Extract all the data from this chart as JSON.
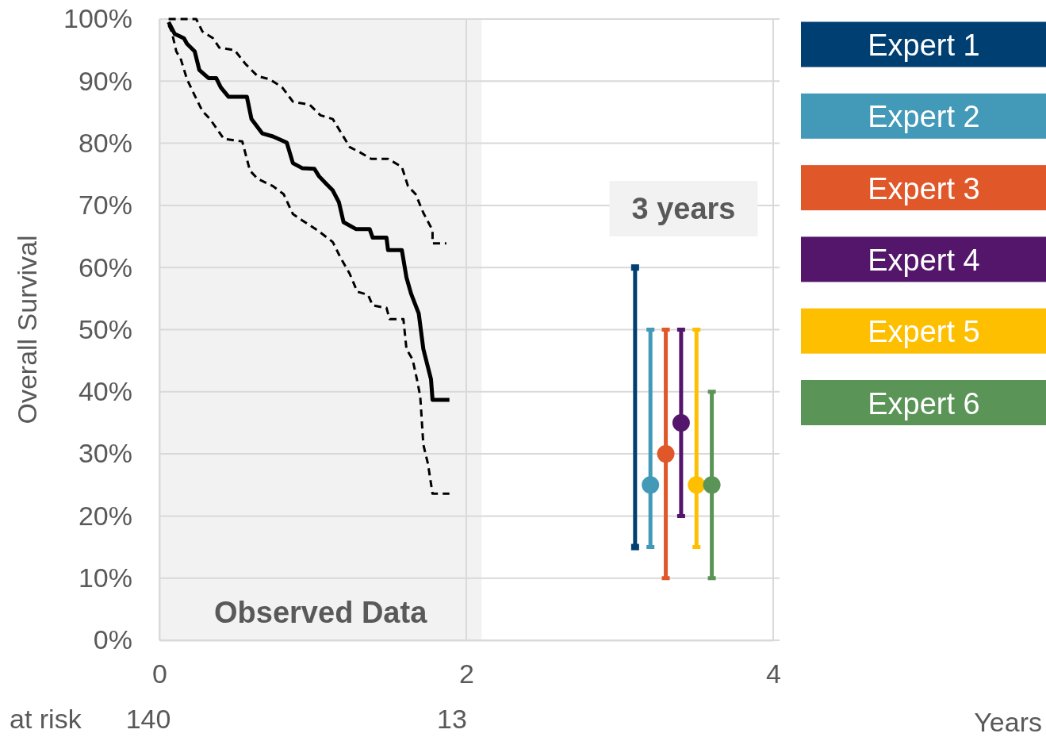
{
  "chart_data": {
    "type": "line",
    "ylabel": "Overall Survival",
    "xlim": [
      0,
      4
    ],
    "xticks": [
      0,
      2,
      4
    ],
    "ylim": [
      0,
      100
    ],
    "yticks": [
      {
        "value": 0,
        "label": "0%"
      },
      {
        "value": 10,
        "label": "10%"
      },
      {
        "value": 20,
        "label": "20%"
      },
      {
        "value": 30,
        "label": "30%"
      },
      {
        "value": 40,
        "label": "40%"
      },
      {
        "value": 50,
        "label": "50%"
      },
      {
        "value": 60,
        "label": "60%"
      },
      {
        "value": 70,
        "label": "70%"
      },
      {
        "value": 80,
        "label": "80%"
      },
      {
        "value": 90,
        "label": "90%"
      },
      {
        "value": 100,
        "label": "100%"
      }
    ],
    "grid": true,
    "legend": "right",
    "bands": [
      {
        "axis": "x",
        "from": 0,
        "to": 2.1,
        "label": "Observed Data",
        "color": "#f2f2f2"
      }
    ],
    "annotations": [
      "3 years",
      "at risk",
      "140",
      "13",
      "Years"
    ],
    "series": [
      {
        "color": "#000000",
        "line_style": "solid",
        "x": [
          0.06,
          0.1,
          0.16,
          0.18,
          0.23,
          0.26,
          0.32,
          0.37,
          0.4,
          0.45,
          0.57,
          0.6,
          0.67,
          0.74,
          0.83,
          0.87,
          0.93,
          1.01,
          1.04,
          1.09,
          1.13,
          1.17,
          1.2,
          1.28,
          1.37,
          1.39,
          1.48,
          1.49,
          1.58,
          1.61,
          1.64,
          1.69,
          1.72,
          1.77,
          1.78,
          1.89
        ],
        "values": [
          99.5,
          97.6,
          96.9,
          96,
          94.8,
          91.8,
          90.5,
          90.5,
          89,
          87.5,
          87.5,
          83.9,
          81.6,
          81.1,
          80.1,
          76.8,
          76,
          75.9,
          74.7,
          73.4,
          72.4,
          70.5,
          67.3,
          66.2,
          66.2,
          64.8,
          64.8,
          62.8,
          62.8,
          58.4,
          55.8,
          52.6,
          46.9,
          42,
          38.7,
          38.7
        ]
      },
      {
        "color": "#000000",
        "line_style": "dashed",
        "x": [
          0.06,
          0.24,
          0.28,
          0.35,
          0.39,
          0.49,
          0.56,
          0.64,
          0.72,
          0.8,
          0.87,
          0.98,
          1.05,
          1.13,
          1.24,
          1.31,
          1.38,
          1.49,
          1.58,
          1.62,
          1.67,
          1.72,
          1.78,
          1.78,
          1.87
        ],
        "values": [
          100,
          100,
          98,
          96.9,
          95.4,
          95,
          92.8,
          90.8,
          90.3,
          89,
          86.7,
          86.2,
          84.5,
          83.9,
          79.4,
          78.5,
          77.5,
          77.5,
          76.2,
          73.1,
          71.8,
          68.8,
          66,
          63.9,
          63.9
        ]
      },
      {
        "color": "#000000",
        "line_style": "dashed",
        "x": [
          0.06,
          0.08,
          0.11,
          0.14,
          0.18,
          0.23,
          0.28,
          0.33,
          0.42,
          0.54,
          0.59,
          0.64,
          0.74,
          0.81,
          0.87,
          0.93,
          1.03,
          1.13,
          1.18,
          1.24,
          1.29,
          1.36,
          1.39,
          1.48,
          1.5,
          1.59,
          1.61,
          1.65,
          1.68,
          1.7,
          1.72,
          1.75,
          1.78,
          1.89
        ],
        "values": [
          99,
          98,
          94.8,
          93.5,
          90.3,
          87.7,
          85.2,
          83.9,
          80.7,
          80.3,
          75.6,
          74.3,
          73.1,
          71.8,
          68.6,
          67.6,
          66,
          64.1,
          61.6,
          59,
          56.1,
          55.6,
          53.9,
          53.5,
          51.7,
          51.7,
          46.9,
          45.2,
          41.8,
          39.2,
          31.5,
          28.4,
          23.6,
          23.6
        ]
      },
      {
        "name": "Expert 1",
        "color": "#003f72",
        "line_style": "solid",
        "marker": "square",
        "x": [
          3.1,
          3.1
        ],
        "values": [
          15,
          60
        ]
      },
      {
        "type": "scatter",
        "name": "Expert 2",
        "color": "#4299b8",
        "marker": "circle",
        "x": [
          3.2
        ],
        "values": [
          25
        ],
        "errors": [
          [
            15,
            50
          ]
        ]
      },
      {
        "type": "scatter",
        "name": "Expert 3",
        "color": "#e0582a",
        "marker": "circle",
        "x": [
          3.3
        ],
        "values": [
          30
        ],
        "errors": [
          [
            10,
            50
          ]
        ]
      },
      {
        "type": "scatter",
        "name": "Expert 4",
        "color": "#54166b",
        "marker": "circle",
        "x": [
          3.4
        ],
        "values": [
          35
        ],
        "errors": [
          [
            20,
            50
          ]
        ]
      },
      {
        "type": "scatter",
        "name": "Expert 5",
        "color": "#fdbf00",
        "marker": "circle",
        "x": [
          3.5
        ],
        "values": [
          25
        ],
        "errors": [
          [
            15,
            50
          ]
        ]
      },
      {
        "type": "scatter",
        "name": "Expert 6",
        "color": "#5a9457",
        "marker": "circle",
        "x": [
          3.6
        ],
        "values": [
          25
        ],
        "errors": [
          [
            10,
            40
          ]
        ]
      }
    ]
  }
}
